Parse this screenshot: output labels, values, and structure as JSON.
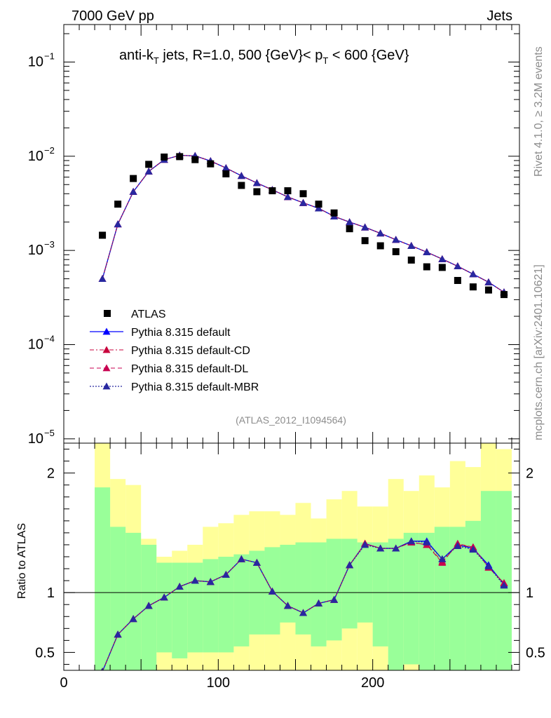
{
  "header": {
    "left": "7000 GeV pp",
    "right": "Jets"
  },
  "side_labels": {
    "top": "Rivet 4.1.0, ≥ 3.2M events",
    "bottom": "mcplots.cern.ch [arXiv:2401.10621]"
  },
  "analysis_tag": "(ATLAS_2012_I1094564)",
  "title_parts": {
    "a": "anti-k",
    "a_sub": "T",
    "b": " jets, R=1.0, 500 {GeV}< p",
    "b_sub": "T",
    "c": " < 600 {GeV}"
  },
  "ratio_ylabel": "Ratio to ATLAS",
  "colors": {
    "band_inner": "#99ff99",
    "band_outer": "#ffff99",
    "data": "#000000",
    "default": "#0000ff",
    "cd": "#c8003c",
    "dl": "#c80050",
    "mbr": "#2828a0"
  },
  "chart_data": {
    "type": "scatter",
    "xlim": [
      0,
      295
    ],
    "upper": {
      "yscale": "log",
      "ylim": [
        9e-06,
        0.25
      ],
      "yticks": [
        {
          "value": 0.1,
          "base": "10",
          "exp": "−1"
        },
        {
          "value": 0.01,
          "base": "10",
          "exp": "−2"
        },
        {
          "value": 0.001,
          "base": "10",
          "exp": "−3"
        },
        {
          "value": 0.0001,
          "base": "10",
          "exp": "−4"
        },
        {
          "value": 1e-05,
          "base": "10",
          "exp": "−5"
        }
      ]
    },
    "lower": {
      "ylim": [
        0.35,
        2.25
      ],
      "yticks": [
        {
          "value": 0.5,
          "label": "0.5"
        },
        {
          "value": 1,
          "label": "1"
        },
        {
          "value": 2,
          "label": "2"
        }
      ],
      "reference": 1.0
    },
    "xticks": [
      {
        "value": 0,
        "label": "0"
      },
      {
        "value": 100,
        "label": "100"
      },
      {
        "value": 200,
        "label": "200"
      }
    ],
    "bins": [
      [
        20,
        30
      ],
      [
        30,
        40
      ],
      [
        40,
        50
      ],
      [
        50,
        60
      ],
      [
        60,
        70
      ],
      [
        70,
        80
      ],
      [
        80,
        90
      ],
      [
        90,
        100
      ],
      [
        100,
        110
      ],
      [
        110,
        120
      ],
      [
        120,
        130
      ],
      [
        130,
        140
      ],
      [
        140,
        150
      ],
      [
        150,
        160
      ],
      [
        160,
        170
      ],
      [
        170,
        180
      ],
      [
        180,
        190
      ],
      [
        190,
        200
      ],
      [
        200,
        210
      ],
      [
        210,
        220
      ],
      [
        220,
        230
      ],
      [
        230,
        240
      ],
      [
        240,
        250
      ],
      [
        250,
        260
      ],
      [
        260,
        270
      ],
      [
        270,
        280
      ],
      [
        280,
        290
      ]
    ],
    "data": {
      "name": "ATLAS",
      "x": [
        25,
        35,
        45,
        55,
        65,
        75,
        85,
        95,
        105,
        115,
        125,
        135,
        145,
        155,
        165,
        175,
        185,
        195,
        205,
        215,
        225,
        235,
        245,
        255,
        265,
        275,
        285
      ],
      "y": [
        0.00145,
        0.0031,
        0.0058,
        0.0082,
        0.0098,
        0.0099,
        0.0092,
        0.0083,
        0.0065,
        0.0049,
        0.0042,
        0.0043,
        0.0043,
        0.004,
        0.0031,
        0.0025,
        0.0017,
        0.00127,
        0.00112,
        0.00097,
        0.00079,
        0.00067,
        0.00066,
        0.00048,
        0.00041,
        0.00038,
        0.00034
      ]
    },
    "bands": {
      "inner_lo": [
        0.3,
        0.3,
        0.3,
        0.3,
        0.5,
        0.45,
        0.5,
        0.5,
        0.5,
        0.55,
        0.65,
        0.65,
        0.75,
        0.65,
        0.55,
        0.6,
        0.7,
        0.75,
        0.55,
        0.3,
        0.4,
        0.35,
        0.3,
        0.3,
        0.3,
        0.3,
        0.3
      ],
      "inner_hi": [
        1.88,
        1.55,
        1.5,
        1.4,
        1.25,
        1.25,
        1.25,
        1.28,
        1.3,
        1.32,
        1.35,
        1.38,
        1.4,
        1.42,
        1.42,
        1.45,
        1.45,
        1.42,
        1.42,
        1.45,
        1.5,
        1.5,
        1.55,
        1.55,
        1.6,
        1.85,
        1.85
      ],
      "outer_lo": [
        0.3,
        0.3,
        0.3,
        0.3,
        0.3,
        0.3,
        0.3,
        0.3,
        0.3,
        0.3,
        0.3,
        0.3,
        0.3,
        0.3,
        0.3,
        0.3,
        0.3,
        0.3,
        0.3,
        0.3,
        0.3,
        0.3,
        0.3,
        0.3,
        0.3,
        0.3,
        0.3
      ],
      "outer_hi": [
        2.4,
        1.95,
        1.9,
        1.45,
        1.3,
        1.35,
        1.4,
        1.55,
        1.58,
        1.65,
        1.68,
        1.68,
        1.65,
        1.75,
        1.62,
        1.78,
        1.85,
        1.72,
        1.72,
        1.95,
        1.85,
        1.98,
        1.88,
        2.1,
        2.05,
        2.4,
        2.2
      ]
    },
    "series": [
      {
        "name": "Pythia 8.315 default",
        "style": "solid",
        "color": "#0000ff",
        "width": 1.3,
        "y": [
          0.0005,
          0.0019,
          0.0042,
          0.0069,
          0.0092,
          0.0102,
          0.0101,
          0.0089,
          0.0075,
          0.0062,
          0.0052,
          0.0044,
          0.0037,
          0.0032,
          0.0028,
          0.0023,
          0.002,
          0.00176,
          0.00152,
          0.0013,
          0.00112,
          0.00096,
          0.00081,
          0.00068,
          0.00056,
          0.00046,
          0.00036
        ],
        "ratio": [
          0.34,
          0.65,
          0.78,
          0.89,
          0.96,
          1.05,
          1.1,
          1.09,
          1.15,
          1.28,
          1.25,
          1.01,
          0.89,
          0.83,
          0.91,
          0.94,
          1.23,
          1.41,
          1.37,
          1.37,
          1.43,
          1.43,
          1.28,
          1.4,
          1.37,
          1.23,
          1.07
        ]
      },
      {
        "name": "Pythia 8.315 default-CD",
        "style": "dashdot",
        "color": "#c8003c",
        "width": 1.1,
        "y": [
          0.0005,
          0.0019,
          0.0042,
          0.0069,
          0.0092,
          0.0102,
          0.0101,
          0.0089,
          0.0075,
          0.0062,
          0.0052,
          0.0044,
          0.0037,
          0.0032,
          0.0028,
          0.0023,
          0.002,
          0.00176,
          0.00152,
          0.0013,
          0.00112,
          0.00096,
          0.00081,
          0.00068,
          0.00056,
          0.00046,
          0.00036
        ],
        "ratio": [
          0.34,
          0.65,
          0.78,
          0.89,
          0.96,
          1.05,
          1.1,
          1.09,
          1.15,
          1.28,
          1.25,
          1.01,
          0.89,
          0.83,
          0.91,
          0.94,
          1.23,
          1.41,
          1.37,
          1.37,
          1.42,
          1.4,
          1.26,
          1.4,
          1.38,
          1.21,
          1.08
        ]
      },
      {
        "name": "Pythia 8.315 default-DL",
        "style": "dashed",
        "color": "#c80050",
        "width": 1.1,
        "y": [
          0.0005,
          0.0019,
          0.0042,
          0.0069,
          0.0092,
          0.0102,
          0.0101,
          0.0089,
          0.0075,
          0.0062,
          0.0052,
          0.0044,
          0.0037,
          0.0032,
          0.0028,
          0.0023,
          0.002,
          0.00176,
          0.00152,
          0.0013,
          0.00112,
          0.00096,
          0.00081,
          0.00068,
          0.00056,
          0.00046,
          0.00036
        ],
        "ratio": [
          0.34,
          0.65,
          0.78,
          0.89,
          0.96,
          1.05,
          1.1,
          1.09,
          1.15,
          1.28,
          1.25,
          1.01,
          0.89,
          0.83,
          0.91,
          0.94,
          1.23,
          1.41,
          1.37,
          1.37,
          1.42,
          1.4,
          1.25,
          1.41,
          1.38,
          1.21,
          1.08
        ]
      },
      {
        "name": "Pythia 8.315 default-MBR",
        "style": "dotted",
        "color": "#2828a0",
        "width": 1.3,
        "y": [
          0.0005,
          0.0019,
          0.0042,
          0.0069,
          0.0092,
          0.0102,
          0.0101,
          0.0089,
          0.0075,
          0.0062,
          0.0052,
          0.0044,
          0.0037,
          0.0032,
          0.0028,
          0.0023,
          0.002,
          0.00176,
          0.00152,
          0.0013,
          0.00112,
          0.00096,
          0.00081,
          0.00068,
          0.00056,
          0.00046,
          0.00036
        ],
        "ratio": [
          0.34,
          0.65,
          0.78,
          0.89,
          0.96,
          1.05,
          1.1,
          1.09,
          1.15,
          1.28,
          1.25,
          1.01,
          0.89,
          0.83,
          0.91,
          0.94,
          1.23,
          1.4,
          1.37,
          1.37,
          1.43,
          1.42,
          1.28,
          1.39,
          1.36,
          1.22,
          1.06
        ]
      }
    ]
  }
}
